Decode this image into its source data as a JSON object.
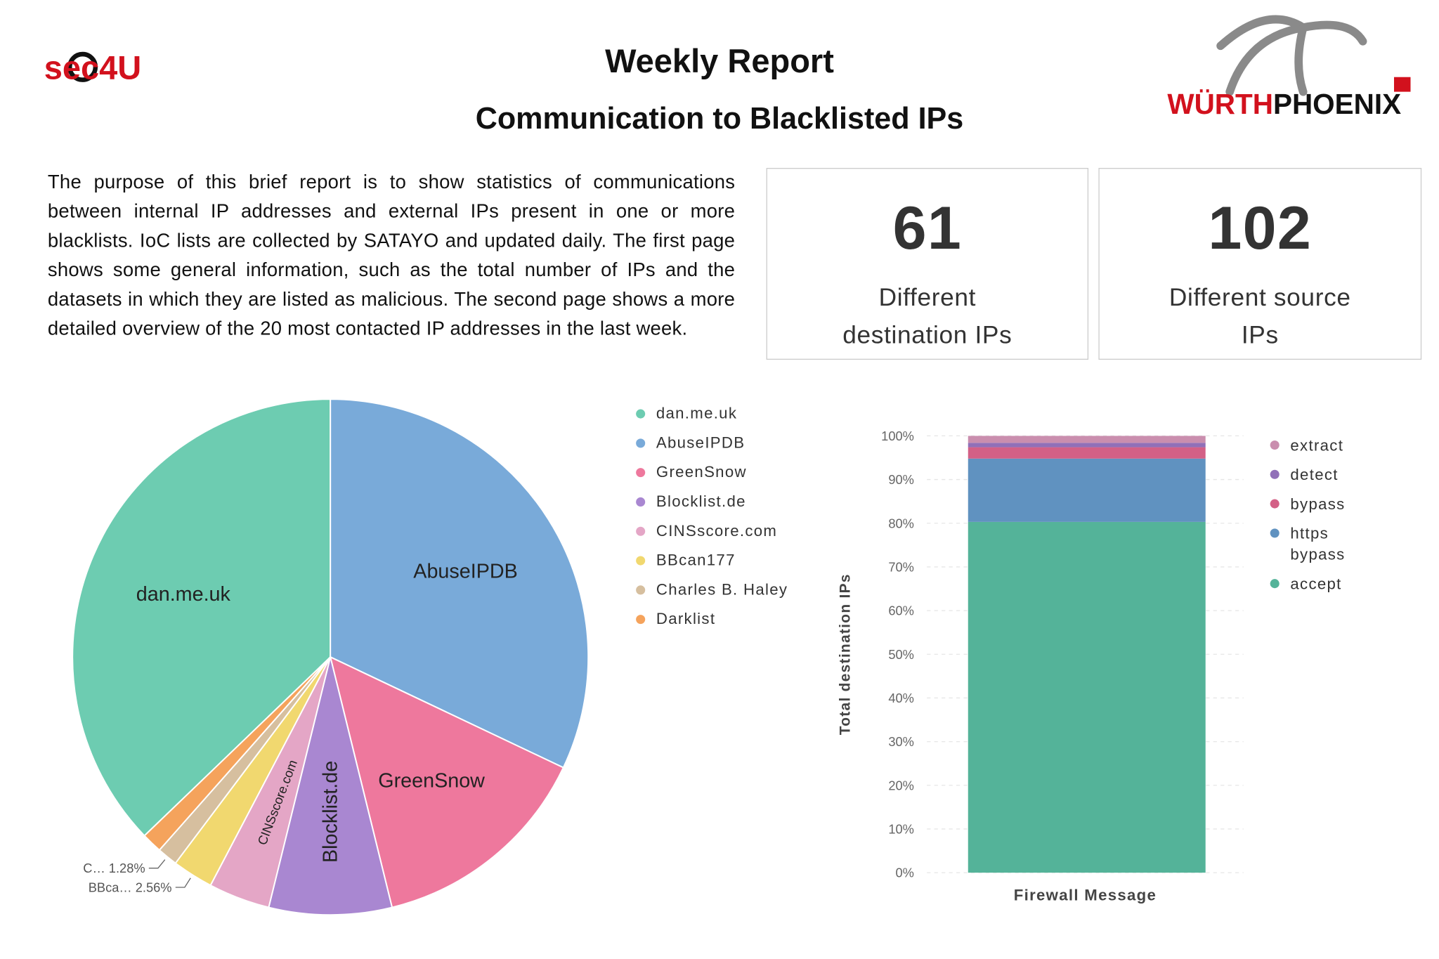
{
  "header": {
    "logo_left": "sec4U",
    "logo_right": [
      "WÜRTH",
      "PHOENIX"
    ],
    "title": "Weekly Report",
    "subtitle": "Communication to Blacklisted IPs"
  },
  "intro": "The purpose of this brief report is to show statistics of communications between internal IP addresses and external IPs present in one or more blacklists. IoC lists are collected by SATAYO and updated daily. The first page shows some general information, such as the total number of IPs and the datasets in which they are listed as malicious. The second page shows a more detailed overview of the 20 most contacted IP addresses in the last week.",
  "stats": [
    {
      "value": 61,
      "label": "Different destination IPs"
    },
    {
      "value": 102,
      "label": "Different source IPs"
    }
  ],
  "chart_data": [
    {
      "type": "pie",
      "categories": [
        "dan.me.uk",
        "AbuseIPDB",
        "GreenSnow",
        "Blocklist.de",
        "CINSscore.com",
        "BBcan177",
        "Charles B. Haley",
        "Darklist"
      ],
      "values": [
        37.18,
        32.05,
        14.1,
        7.69,
        3.85,
        2.56,
        1.28,
        1.28
      ],
      "value_labels": [
        null,
        null,
        null,
        null,
        null,
        "BBca… 2.56%",
        "C… 1.28%",
        null
      ],
      "colors": [
        "#6dccb1",
        "#79aad9",
        "#ee789d",
        "#a987d1",
        "#e4a6c6",
        "#f1d86f",
        "#d6bf9f",
        "#f5a35c"
      ],
      "legend": "right"
    },
    {
      "type": "stacked_bar",
      "categories": [
        null
      ],
      "xlabel": "Firewall Message",
      "ylabel": "Total destination IPs",
      "series": [
        {
          "name": "extract",
          "color": "#ca8eae",
          "values": [
            1.6
          ]
        },
        {
          "name": "detect",
          "color": "#9170b8",
          "values": [
            1.0
          ]
        },
        {
          "name": "bypass",
          "color": "#d36086",
          "values": [
            2.6
          ]
        },
        {
          "name": "https bypass",
          "color": "#6092c0",
          "values": [
            14.5
          ]
        },
        {
          "name": "accept",
          "color": "#54b399",
          "values": [
            80.3
          ]
        }
      ],
      "ylim": [
        0,
        100
      ],
      "yticks": [
        {
          "value": 0,
          "label": "0%"
        },
        {
          "value": 10,
          "label": "10%"
        },
        {
          "value": 20,
          "label": "20%"
        },
        {
          "value": 30,
          "label": "30%"
        },
        {
          "value": 40,
          "label": "40%"
        },
        {
          "value": 50,
          "label": "50%"
        },
        {
          "value": 60,
          "label": "60%"
        },
        {
          "value": 70,
          "label": "70%"
        },
        {
          "value": 80,
          "label": "80%"
        },
        {
          "value": 90,
          "label": "90%"
        },
        {
          "value": 100,
          "label": "100%"
        }
      ],
      "grid": true,
      "legend": "right"
    }
  ]
}
